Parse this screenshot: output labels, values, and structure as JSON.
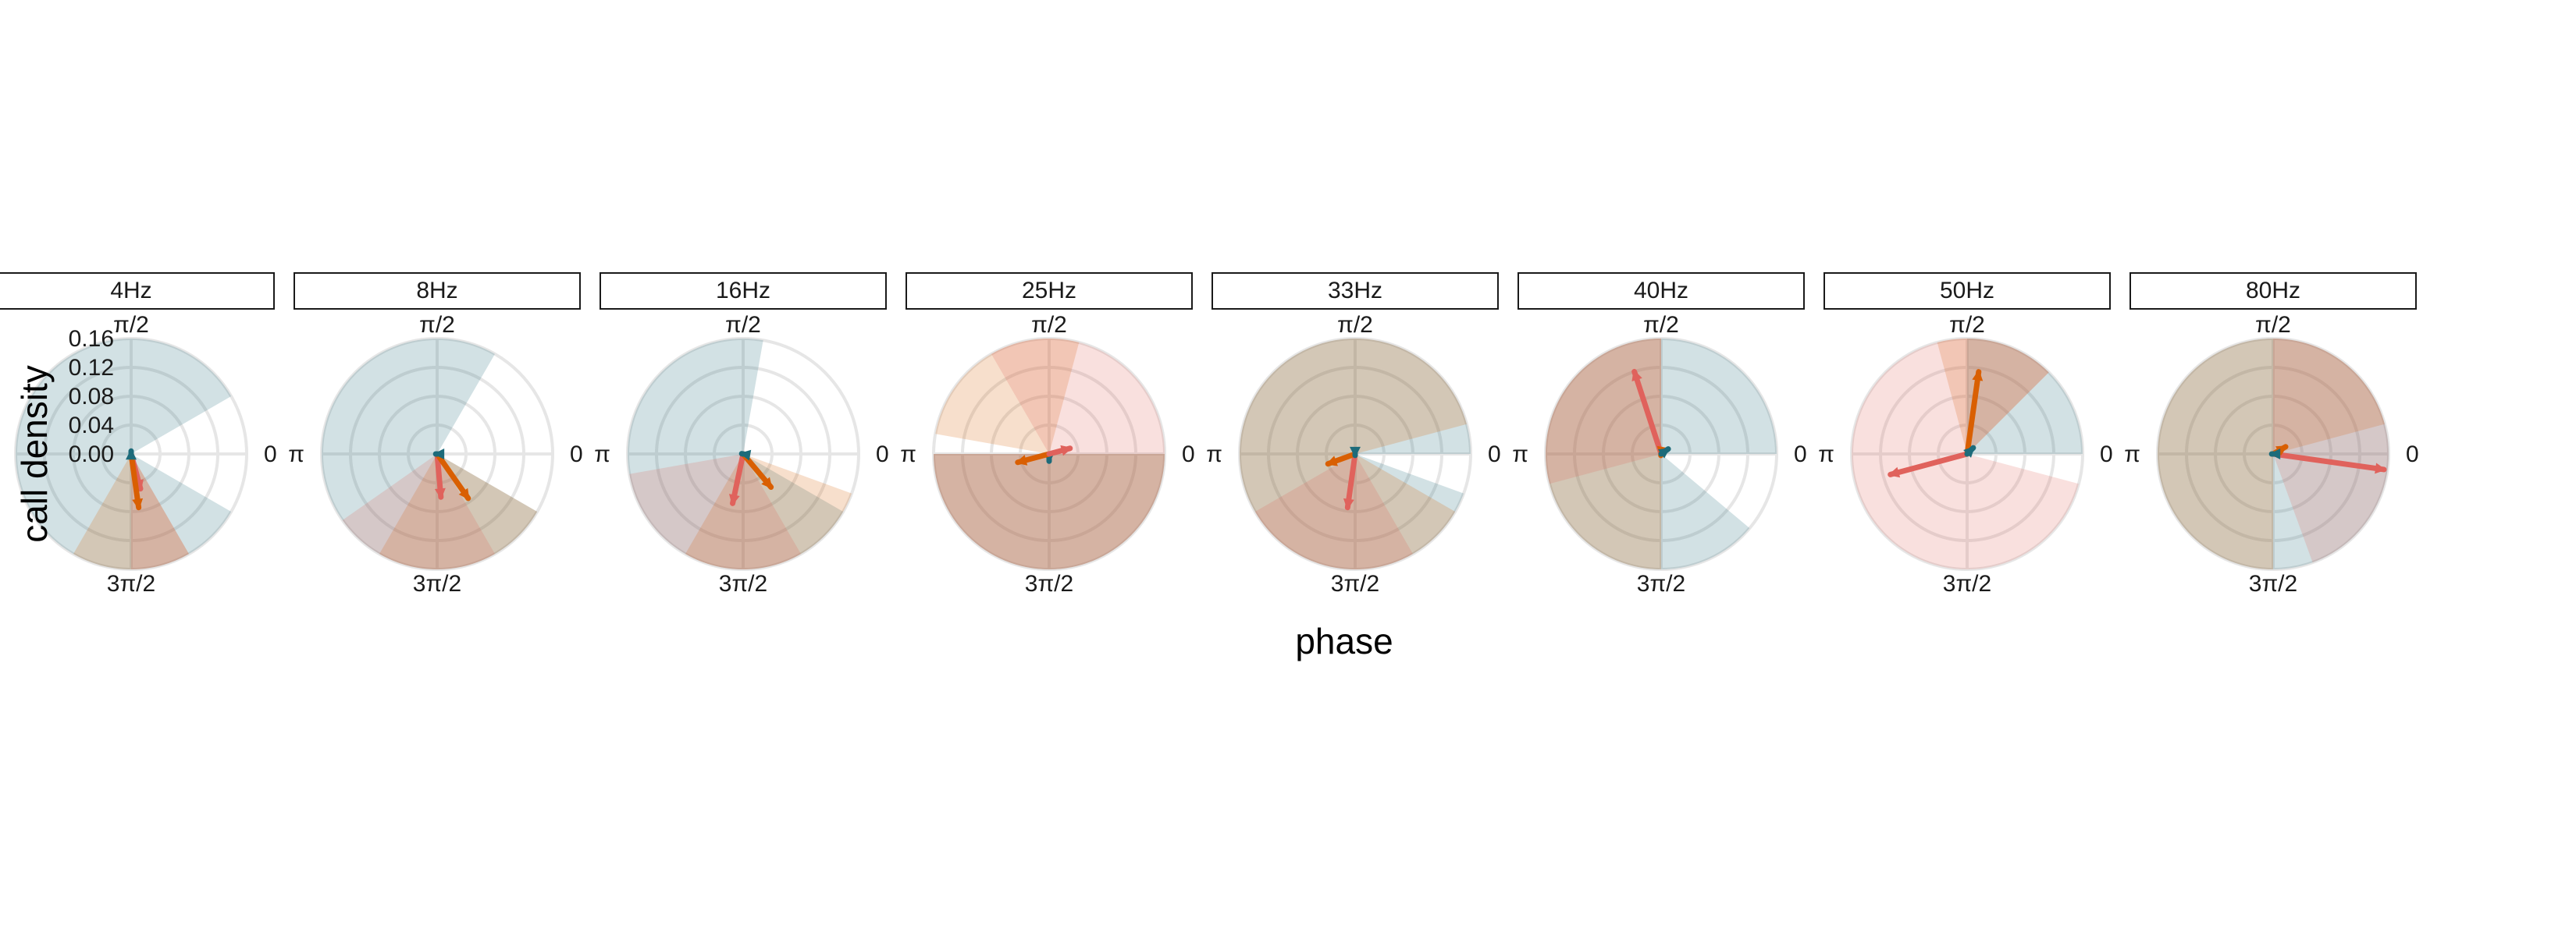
{
  "colors": {
    "teal": "#1d6b7a",
    "orange": "#d95f02",
    "coral": "#e0625c",
    "grid": "#e6e6e6"
  },
  "chart_data": {
    "type": "polar_rose",
    "xlabel": "phase",
    "ylabel": "call density",
    "yticks": [
      "0.00",
      "0.04",
      "0.08",
      "0.12",
      "0.16"
    ],
    "rlim": [
      0,
      0.16
    ],
    "angle_labels": [
      "0",
      "π/2",
      "π",
      "3π/2"
    ],
    "grid": true,
    "legend": "none",
    "panels": [
      {
        "label": "4Hz",
        "sectors": [
          {
            "series": 0,
            "start_deg": 30,
            "end_deg": 330,
            "radius": 0.16
          },
          {
            "series": 1,
            "start_deg": 240,
            "end_deg": 300,
            "radius": 0.16
          },
          {
            "series": 2,
            "start_deg": 270,
            "end_deg": 300,
            "radius": 0.16
          }
        ],
        "arrows": [
          {
            "series": 2,
            "angle_deg": 285,
            "length": 0.05
          },
          {
            "series": 1,
            "angle_deg": 278,
            "length": 0.075
          },
          {
            "series": 0,
            "angle_deg": 90,
            "length": 0.004
          }
        ]
      },
      {
        "label": "8Hz",
        "sectors": [
          {
            "series": 0,
            "start_deg": 60,
            "end_deg": 330,
            "radius": 0.16
          },
          {
            "series": 1,
            "start_deg": 240,
            "end_deg": 330,
            "radius": 0.16
          },
          {
            "series": 2,
            "start_deg": 215,
            "end_deg": 300,
            "radius": 0.16
          }
        ],
        "arrows": [
          {
            "series": 2,
            "angle_deg": 275,
            "length": 0.06
          },
          {
            "series": 1,
            "angle_deg": 305,
            "length": 0.075
          },
          {
            "series": 0,
            "angle_deg": 180,
            "length": 0.002
          }
        ]
      },
      {
        "label": "16Hz",
        "sectors": [
          {
            "series": 0,
            "start_deg": 80,
            "end_deg": 330,
            "radius": 0.16
          },
          {
            "series": 1,
            "start_deg": 240,
            "end_deg": 340,
            "radius": 0.16
          },
          {
            "series": 2,
            "start_deg": 190,
            "end_deg": 300,
            "radius": 0.16
          }
        ],
        "arrows": [
          {
            "series": 2,
            "angle_deg": 258,
            "length": 0.07
          },
          {
            "series": 1,
            "angle_deg": 310,
            "length": 0.06
          },
          {
            "series": 0,
            "angle_deg": 170,
            "length": 0.002
          }
        ]
      },
      {
        "label": "25Hz",
        "sectors": [
          {
            "series": 0,
            "start_deg": 180,
            "end_deg": 360,
            "radius": 0.16
          },
          {
            "series": 1,
            "start_deg": 75,
            "end_deg": 170,
            "radius": 0.16
          },
          {
            "series": 1,
            "start_deg": 180,
            "end_deg": 360,
            "radius": 0.16
          },
          {
            "series": 2,
            "start_deg": 0,
            "end_deg": 120,
            "radius": 0.16
          },
          {
            "series": 2,
            "start_deg": 180,
            "end_deg": 360,
            "radius": 0.16
          }
        ],
        "arrows": [
          {
            "series": 0,
            "angle_deg": 270,
            "length": 0.01
          },
          {
            "series": 1,
            "angle_deg": 195,
            "length": 0.045
          },
          {
            "series": 2,
            "angle_deg": 15,
            "length": 0.03
          }
        ]
      },
      {
        "label": "33Hz",
        "sectors": [
          {
            "series": 0,
            "start_deg": 0,
            "end_deg": 340,
            "radius": 0.16
          },
          {
            "series": 1,
            "start_deg": 15,
            "end_deg": 330,
            "radius": 0.16
          },
          {
            "series": 2,
            "start_deg": 210,
            "end_deg": 300,
            "radius": 0.16
          }
        ],
        "arrows": [
          {
            "series": 2,
            "angle_deg": 262,
            "length": 0.075
          },
          {
            "series": 1,
            "angle_deg": 200,
            "length": 0.04
          },
          {
            "series": 0,
            "angle_deg": 270,
            "length": 0.002
          }
        ]
      },
      {
        "label": "40Hz",
        "sectors": [
          {
            "series": 0,
            "start_deg": 0,
            "end_deg": 320,
            "radius": 0.16
          },
          {
            "series": 1,
            "start_deg": 90,
            "end_deg": 270,
            "radius": 0.16
          },
          {
            "series": 2,
            "start_deg": 90,
            "end_deg": 195,
            "radius": 0.16
          }
        ],
        "arrows": [
          {
            "series": 2,
            "angle_deg": 108,
            "length": 0.12
          },
          {
            "series": 1,
            "angle_deg": 260,
            "length": 0.002
          },
          {
            "series": 0,
            "angle_deg": 35,
            "length": 0.012
          }
        ]
      },
      {
        "label": "50Hz",
        "sectors": [
          {
            "series": 0,
            "start_deg": 0,
            "end_deg": 90,
            "radius": 0.16
          },
          {
            "series": 1,
            "start_deg": 45,
            "end_deg": 105,
            "radius": 0.16
          },
          {
            "series": 2,
            "start_deg": 45,
            "end_deg": 345,
            "radius": 0.16
          }
        ],
        "arrows": [
          {
            "series": 2,
            "angle_deg": 195,
            "length": 0.11
          },
          {
            "series": 1,
            "angle_deg": 82,
            "length": 0.115
          },
          {
            "series": 0,
            "angle_deg": 45,
            "length": 0.012
          }
        ]
      },
      {
        "label": "80Hz",
        "sectors": [
          {
            "series": 0,
            "start_deg": 0,
            "end_deg": 360,
            "radius": 0.16
          },
          {
            "series": 1,
            "start_deg": 15,
            "end_deg": 270,
            "radius": 0.16
          },
          {
            "series": 2,
            "start_deg": 290,
            "end_deg": 90,
            "radius": 0.16
          }
        ],
        "arrows": [
          {
            "series": 2,
            "angle_deg": 352,
            "length": 0.155
          },
          {
            "series": 1,
            "angle_deg": 30,
            "length": 0.02
          },
          {
            "series": 0,
            "angle_deg": 180,
            "length": 0.002
          }
        ]
      }
    ]
  }
}
